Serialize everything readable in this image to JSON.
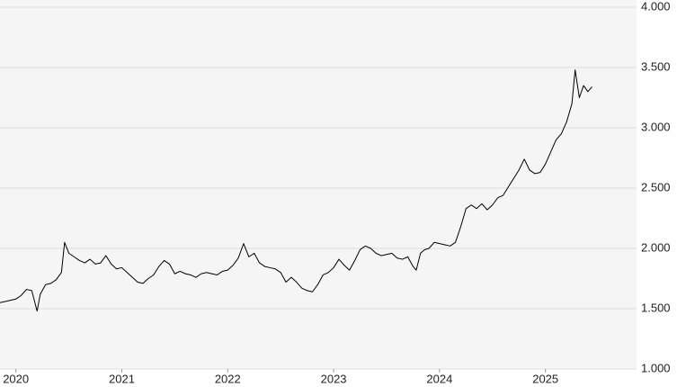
{
  "chart_data": {
    "type": "line",
    "x": [
      2019.85,
      2019.9,
      2019.95,
      2020.0,
      2020.05,
      2020.1,
      2020.15,
      2020.2,
      2020.23,
      2020.28,
      2020.33,
      2020.38,
      2020.43,
      2020.46,
      2020.5,
      2020.55,
      2020.6,
      2020.65,
      2020.7,
      2020.75,
      2020.8,
      2020.85,
      2020.9,
      2020.95,
      2021.0,
      2021.05,
      2021.1,
      2021.15,
      2021.2,
      2021.25,
      2021.3,
      2021.35,
      2021.4,
      2021.45,
      2021.5,
      2021.55,
      2021.6,
      2021.65,
      2021.7,
      2021.75,
      2021.8,
      2021.85,
      2021.9,
      2021.95,
      2022.0,
      2022.05,
      2022.1,
      2022.15,
      2022.2,
      2022.25,
      2022.3,
      2022.35,
      2022.4,
      2022.45,
      2022.5,
      2022.55,
      2022.6,
      2022.65,
      2022.7,
      2022.75,
      2022.8,
      2022.85,
      2022.9,
      2022.95,
      2023.0,
      2023.05,
      2023.1,
      2023.15,
      2023.2,
      2023.25,
      2023.3,
      2023.35,
      2023.4,
      2023.45,
      2023.5,
      2023.55,
      2023.6,
      2023.65,
      2023.7,
      2023.75,
      2023.78,
      2023.82,
      2023.86,
      2023.9,
      2023.95,
      2024.0,
      2024.05,
      2024.1,
      2024.15,
      2024.2,
      2024.25,
      2024.3,
      2024.35,
      2024.4,
      2024.45,
      2024.5,
      2024.55,
      2024.6,
      2024.65,
      2024.7,
      2024.75,
      2024.8,
      2024.85,
      2024.9,
      2024.95,
      2025.0,
      2025.05,
      2025.1,
      2025.15,
      2025.2,
      2025.25,
      2025.28,
      2025.32,
      2025.36,
      2025.4,
      2025.44
    ],
    "series": [
      {
        "color": "#000000",
        "values": [
          1550,
          1560,
          1570,
          1580,
          1610,
          1660,
          1650,
          1480,
          1620,
          1700,
          1710,
          1740,
          1800,
          2050,
          1960,
          1930,
          1900,
          1880,
          1910,
          1870,
          1880,
          1940,
          1870,
          1830,
          1840,
          1800,
          1760,
          1720,
          1710,
          1750,
          1780,
          1850,
          1900,
          1870,
          1790,
          1810,
          1790,
          1780,
          1760,
          1790,
          1800,
          1790,
          1780,
          1810,
          1820,
          1860,
          1920,
          2040,
          1930,
          1960,
          1880,
          1850,
          1840,
          1830,
          1800,
          1720,
          1760,
          1720,
          1670,
          1650,
          1640,
          1700,
          1780,
          1800,
          1840,
          1910,
          1860,
          1820,
          1900,
          1990,
          2020,
          2000,
          1960,
          1940,
          1950,
          1960,
          1920,
          1910,
          1930,
          1850,
          1820,
          1960,
          1990,
          2000,
          2050,
          2040,
          2030,
          2020,
          2050,
          2180,
          2330,
          2360,
          2330,
          2370,
          2320,
          2360,
          2420,
          2440,
          2510,
          2580,
          2650,
          2740,
          2650,
          2620,
          2630,
          2700,
          2800,
          2900,
          2950,
          3050,
          3200,
          3480,
          3250,
          3350,
          3300,
          3340
        ]
      }
    ],
    "xlim": [
      2019.85,
      2025.86
    ],
    "xticks": [
      2020,
      2021,
      2022,
      2023,
      2024,
      2025
    ],
    "ylim": [
      1000,
      4000
    ],
    "yticks": [
      {
        "value": 1000,
        "label": "1.000"
      },
      {
        "value": 1500,
        "label": "1.500"
      },
      {
        "value": 2000,
        "label": "2.000"
      },
      {
        "value": 2500,
        "label": "2.500"
      },
      {
        "value": 3000,
        "label": "3.000"
      },
      {
        "value": 3500,
        "label": "3.500"
      },
      {
        "value": 4000,
        "label": "4.000"
      }
    ],
    "grid": true
  }
}
